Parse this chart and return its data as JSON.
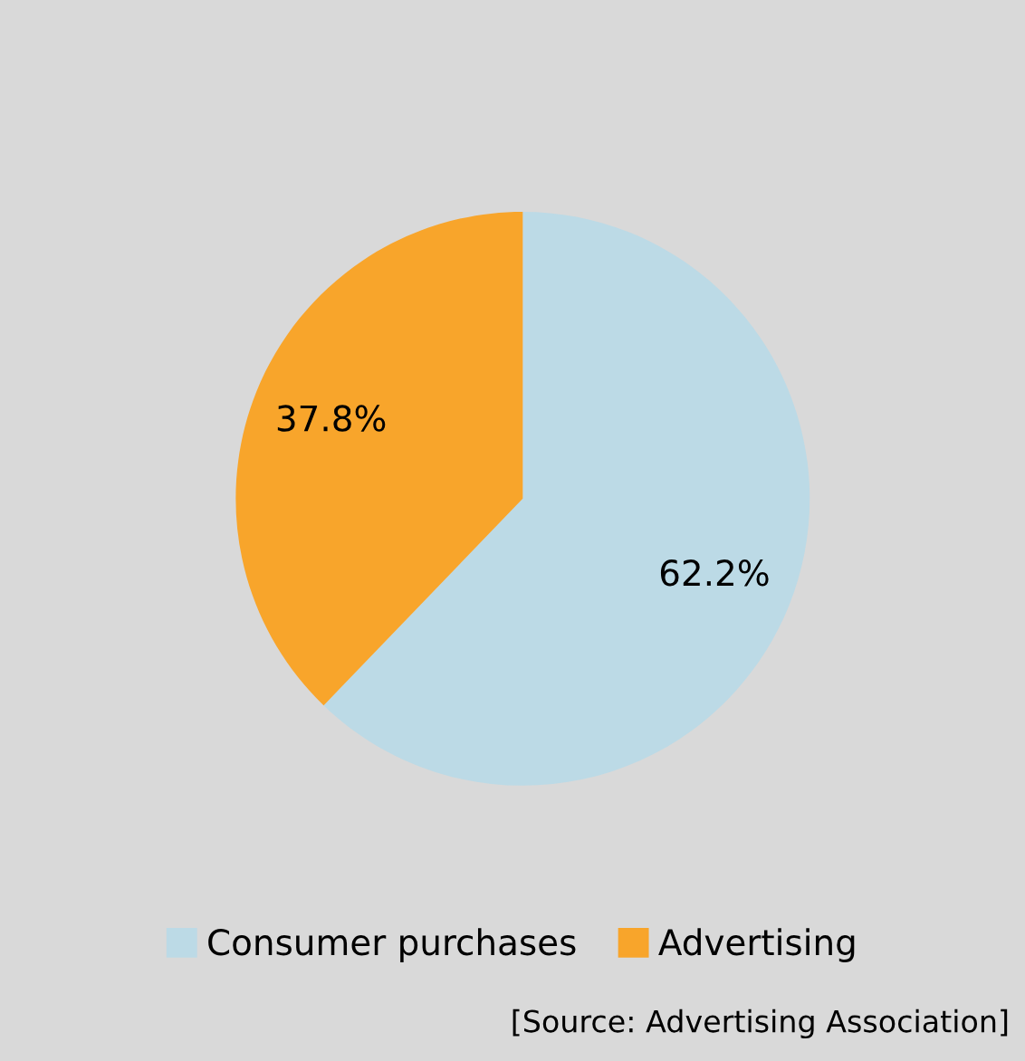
{
  "chart_data": {
    "type": "pie",
    "categories": [
      "Consumer purchases",
      "Advertising"
    ],
    "values": [
      62.2,
      37.8
    ],
    "value_labels": [
      "62.2%",
      "37.8%"
    ],
    "colors": [
      "#bcdae6",
      "#f8a52b"
    ],
    "legend": "bottom",
    "annotations": [
      "[Source: Advertising Association]"
    ]
  }
}
